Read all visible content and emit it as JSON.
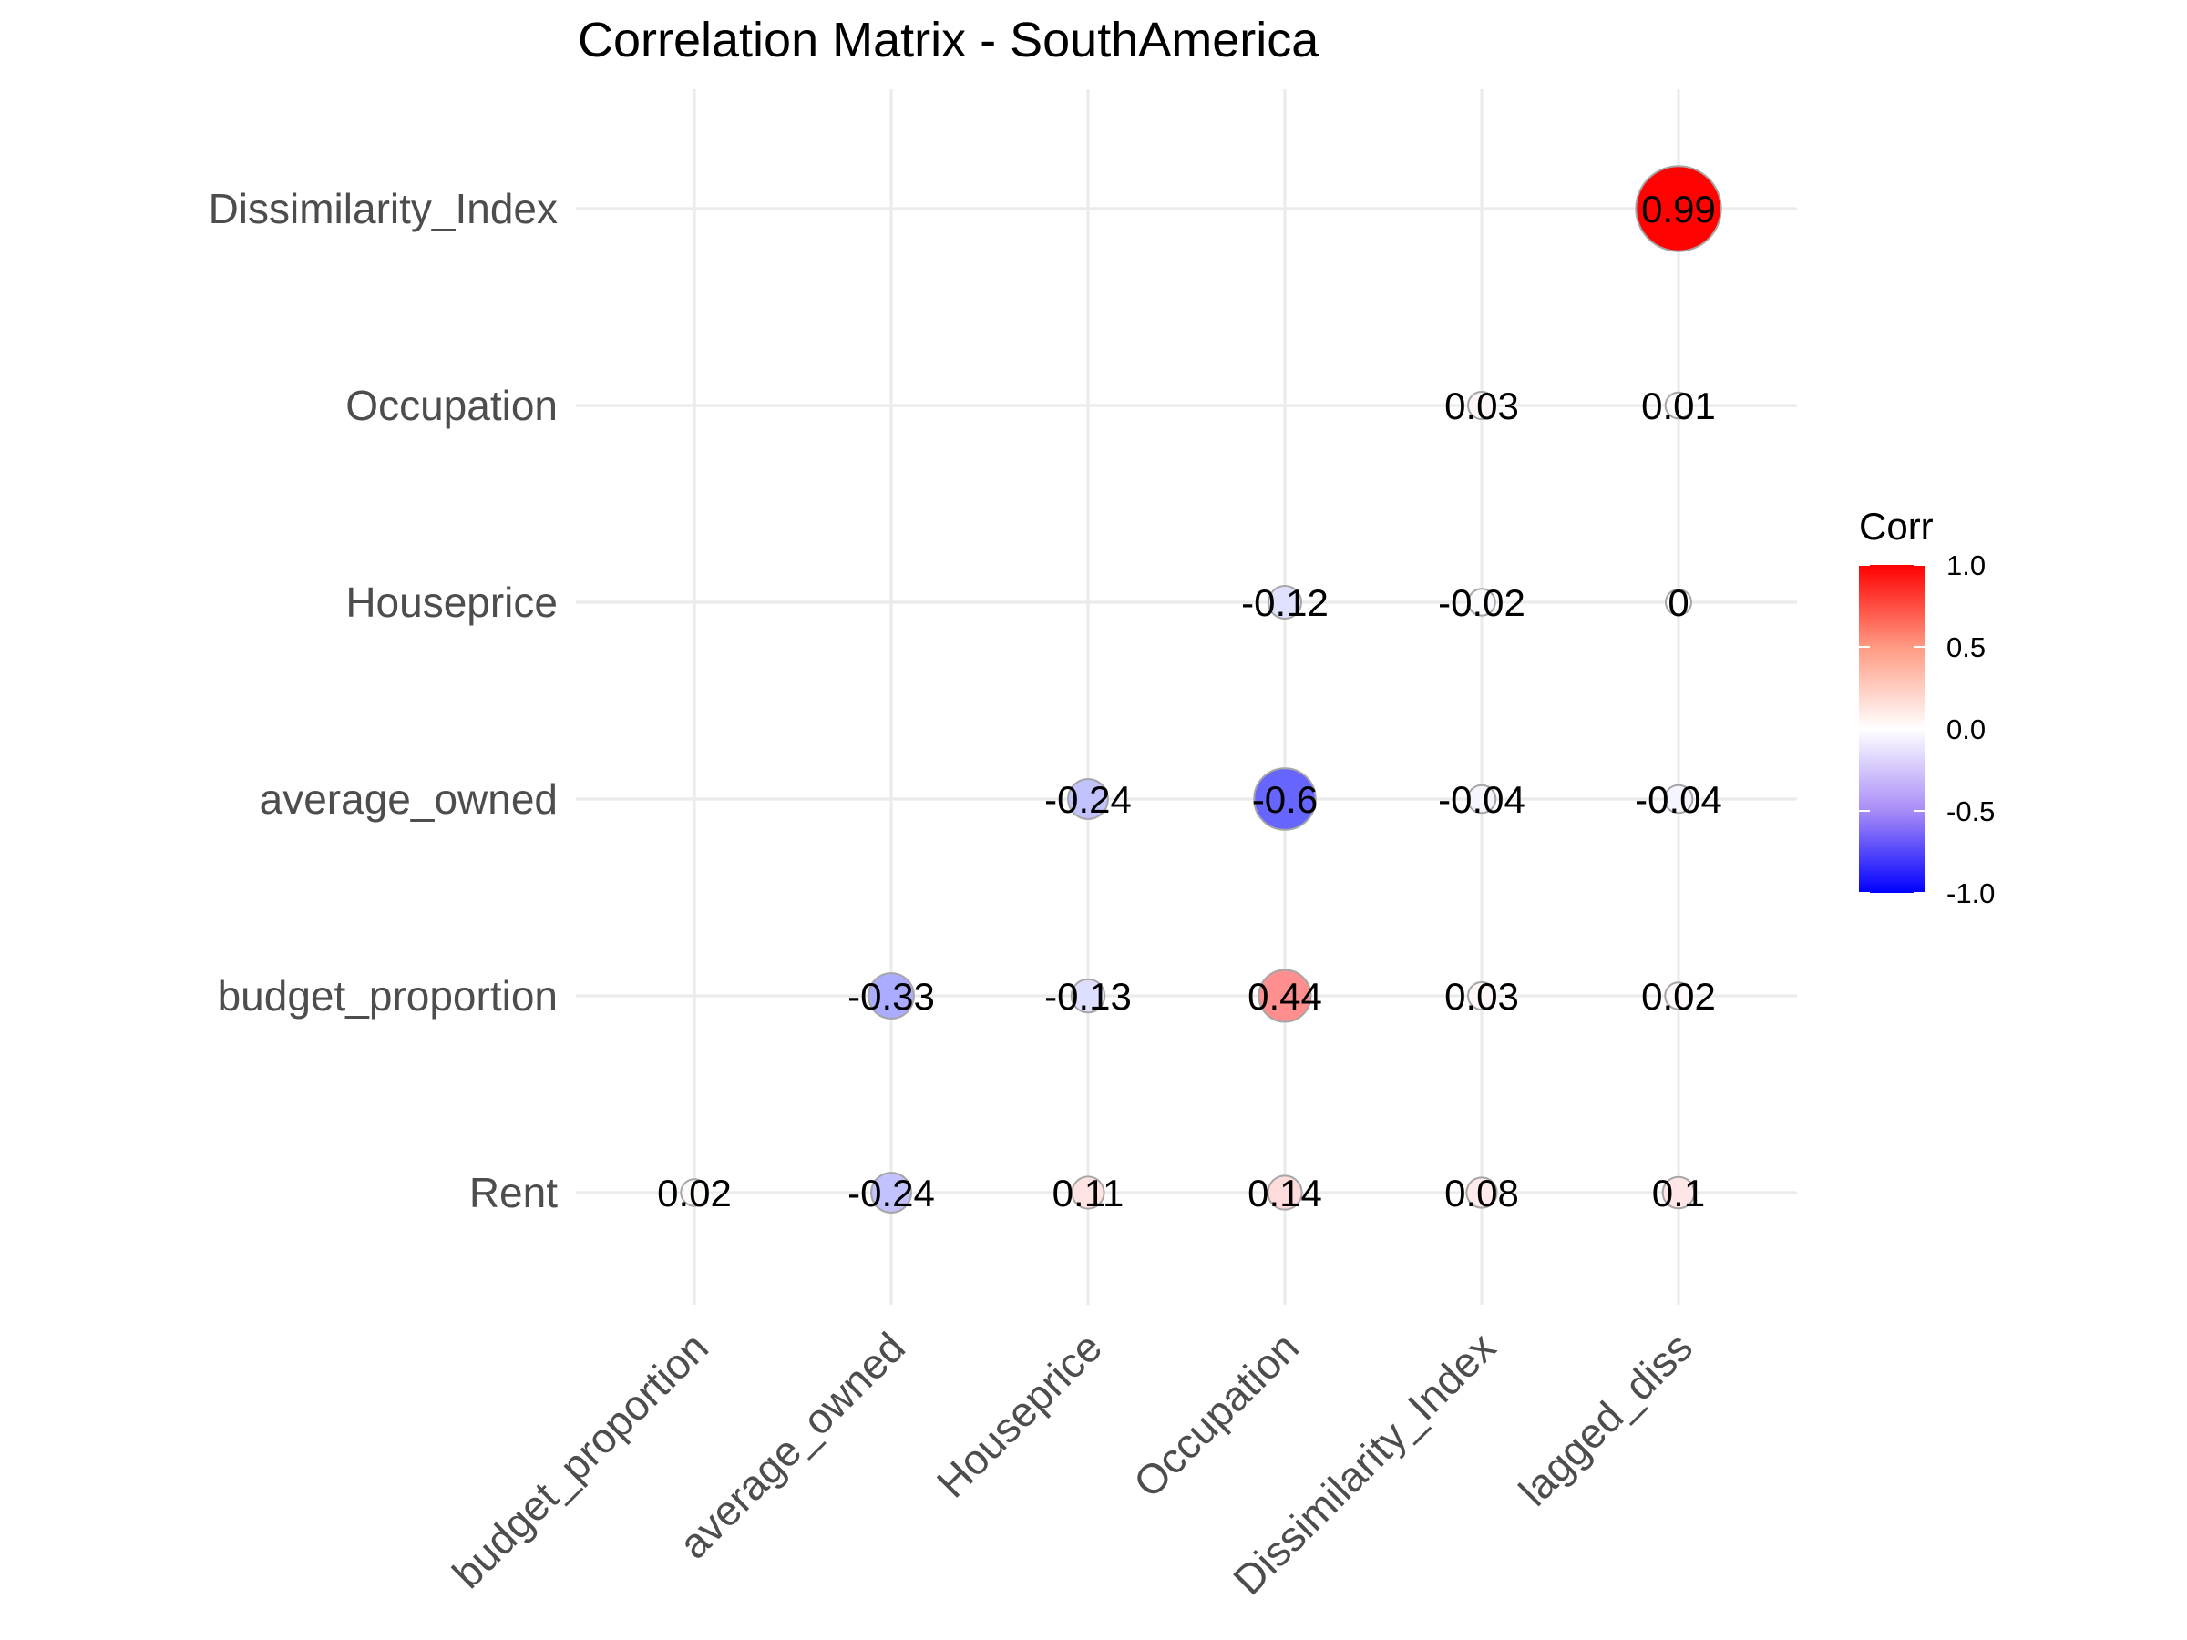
{
  "chart_data": {
    "type": "heatmap",
    "title": "Correlation Matrix - SouthAmerica",
    "x_categories": [
      "budget_proportion",
      "average_owned",
      "Houseprice",
      "Occupation",
      "Dissimilarity_Index",
      "lagged_diss"
    ],
    "y_categories": [
      "Rent",
      "budget_proportion",
      "average_owned",
      "Houseprice",
      "Occupation",
      "Dissimilarity_Index"
    ],
    "cells": [
      {
        "y": "Rent",
        "x": "budget_proportion",
        "value": 0.02,
        "label": "0.02"
      },
      {
        "y": "Rent",
        "x": "average_owned",
        "value": -0.24,
        "label": "-0.24"
      },
      {
        "y": "Rent",
        "x": "Houseprice",
        "value": 0.11,
        "label": "0.11"
      },
      {
        "y": "Rent",
        "x": "Occupation",
        "value": 0.14,
        "label": "0.14"
      },
      {
        "y": "Rent",
        "x": "Dissimilarity_Index",
        "value": 0.08,
        "label": "0.08"
      },
      {
        "y": "Rent",
        "x": "lagged_diss",
        "value": 0.1,
        "label": "0.1"
      },
      {
        "y": "budget_proportion",
        "x": "average_owned",
        "value": -0.33,
        "label": "-0.33"
      },
      {
        "y": "budget_proportion",
        "x": "Houseprice",
        "value": -0.13,
        "label": "-0.13"
      },
      {
        "y": "budget_proportion",
        "x": "Occupation",
        "value": 0.44,
        "label": "0.44"
      },
      {
        "y": "budget_proportion",
        "x": "Dissimilarity_Index",
        "value": 0.03,
        "label": "0.03"
      },
      {
        "y": "budget_proportion",
        "x": "lagged_diss",
        "value": 0.02,
        "label": "0.02"
      },
      {
        "y": "average_owned",
        "x": "Houseprice",
        "value": -0.24,
        "label": "-0.24"
      },
      {
        "y": "average_owned",
        "x": "Occupation",
        "value": -0.6,
        "label": "-0.6"
      },
      {
        "y": "average_owned",
        "x": "Dissimilarity_Index",
        "value": -0.04,
        "label": "-0.04"
      },
      {
        "y": "average_owned",
        "x": "lagged_diss",
        "value": -0.04,
        "label": "-0.04"
      },
      {
        "y": "Houseprice",
        "x": "Occupation",
        "value": -0.12,
        "label": "-0.12"
      },
      {
        "y": "Houseprice",
        "x": "Dissimilarity_Index",
        "value": -0.02,
        "label": "-0.02"
      },
      {
        "y": "Houseprice",
        "x": "lagged_diss",
        "value": 0,
        "label": "0"
      },
      {
        "y": "Occupation",
        "x": "Dissimilarity_Index",
        "value": 0.03,
        "label": "0.03"
      },
      {
        "y": "Occupation",
        "x": "lagged_diss",
        "value": 0.01,
        "label": "0.01"
      },
      {
        "y": "Dissimilarity_Index",
        "x": "lagged_diss",
        "value": 0.99,
        "label": "0.99"
      }
    ],
    "legend": {
      "title": "Corr",
      "ticks": [
        1.0,
        0.5,
        0.0,
        -0.5,
        -1.0
      ],
      "tick_labels": [
        "1.0",
        "0.5",
        "0.0",
        "-0.5",
        "-1.0"
      ],
      "range": [
        -1,
        1
      ],
      "placement": "right"
    },
    "colors": {
      "low": "#0000ff",
      "mid": "#ffffff",
      "high": "#ff0000",
      "circle_outline": "#a6a6a6",
      "grid": "#ebebeb"
    },
    "grid": true,
    "marker": "circle sized by absolute correlation, filled by correlation"
  }
}
